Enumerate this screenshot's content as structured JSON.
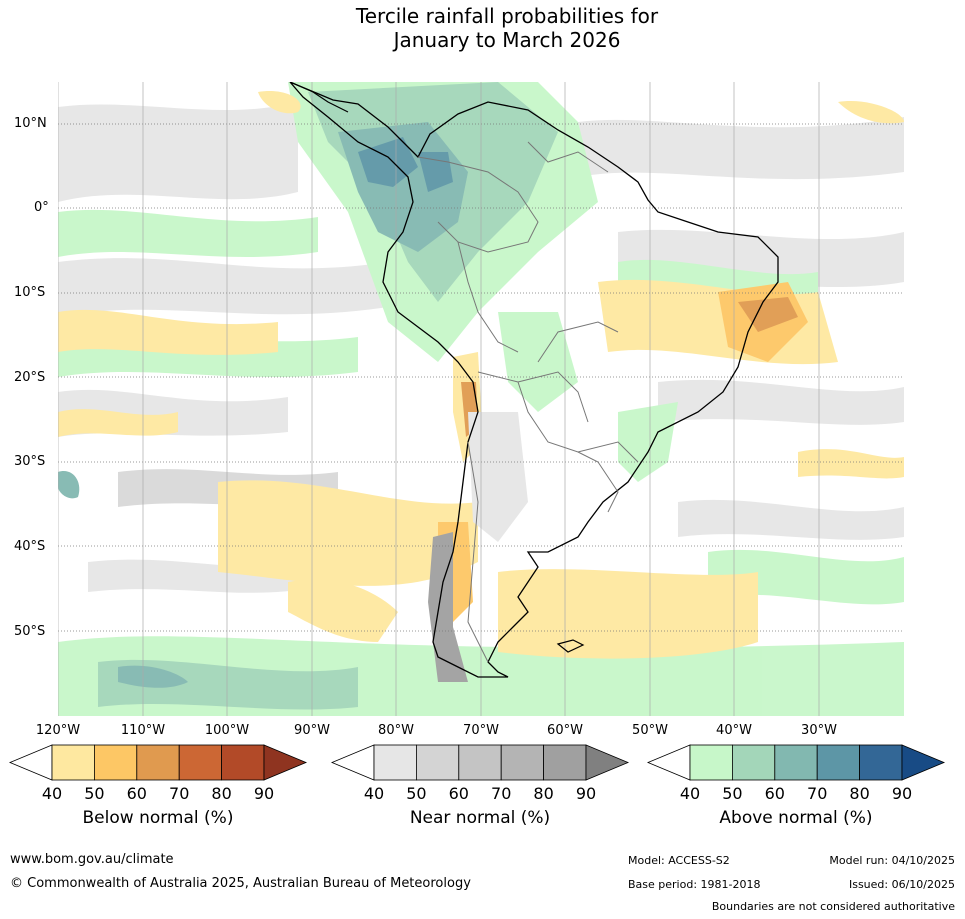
{
  "title_line1": "Tercile rainfall probabilities for",
  "title_line2": "January to March 2026",
  "lat_labels": [
    "10°N",
    "0°",
    "10°S",
    "20°S",
    "30°S",
    "40°S",
    "50°S"
  ],
  "lon_labels": [
    "120°W",
    "110°W",
    "100°W",
    "90°W",
    "80°W",
    "70°W",
    "60°W",
    "50°W",
    "40°W",
    "30°W"
  ],
  "legends": [
    {
      "title": "Below normal (%)",
      "ticks": [
        "40",
        "50",
        "60",
        "70",
        "80",
        "90"
      ],
      "colors": [
        "#ffffff",
        "#fee8a0",
        "#fdc765",
        "#e09a4f",
        "#cc6734",
        "#b24a28",
        "#8f3420"
      ]
    },
    {
      "title": "Near normal (%)",
      "ticks": [
        "40",
        "50",
        "60",
        "70",
        "80",
        "90"
      ],
      "colors": [
        "#ffffff",
        "#e6e6e6",
        "#d4d4d4",
        "#c4c4c4",
        "#b4b4b4",
        "#a0a0a0",
        "#808080"
      ]
    },
    {
      "title": "Above normal (%)",
      "ticks": [
        "40",
        "50",
        "60",
        "70",
        "80",
        "90"
      ],
      "colors": [
        "#ffffff",
        "#c7f7c9",
        "#a3d6b9",
        "#82b8b0",
        "#5d96a6",
        "#336796",
        "#184b85"
      ]
    }
  ],
  "footer": {
    "url": "www.bom.gov.au/climate",
    "copyright": "© Commonwealth of Australia 2025, Australian Bureau of Meteorology",
    "model": "Model: ACCESS-S2",
    "base_period": "Base period: 1981-2018",
    "model_run": "Model run: 04/10/2025",
    "issued": "Issued: 06/10/2025",
    "disclaimer": "Boundaries are not considered authoritative"
  }
}
